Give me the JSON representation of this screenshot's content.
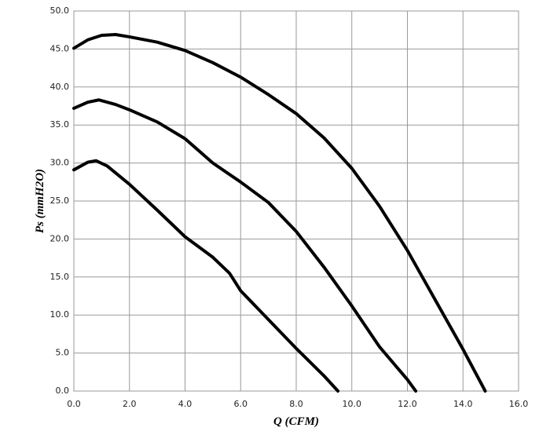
{
  "chart_data": {
    "type": "line",
    "x_label": "Q (CFM)",
    "y_label": "Ps (mmH2O)",
    "xlim": [
      0,
      16
    ],
    "ylim": [
      0,
      50
    ],
    "xticks": [
      {
        "value": 0,
        "label": "0.0"
      },
      {
        "value": 2,
        "label": "2.0"
      },
      {
        "value": 4,
        "label": "4.0"
      },
      {
        "value": 6,
        "label": "6.0"
      },
      {
        "value": 8,
        "label": "8.0"
      },
      {
        "value": 10,
        "label": "10.0"
      },
      {
        "value": 12,
        "label": "12.0"
      },
      {
        "value": 14,
        "label": "14.0"
      },
      {
        "value": 16,
        "label": "16.0"
      }
    ],
    "yticks": [
      {
        "value": 0,
        "label": "0.0"
      },
      {
        "value": 5,
        "label": "5.0"
      },
      {
        "value": 10,
        "label": "10.0"
      },
      {
        "value": 15,
        "label": "15.0"
      },
      {
        "value": 20,
        "label": "20.0"
      },
      {
        "value": 25,
        "label": "25.0"
      },
      {
        "value": 30,
        "label": "30.0"
      },
      {
        "value": 35,
        "label": "35.0"
      },
      {
        "value": 40,
        "label": "40.0"
      },
      {
        "value": 45,
        "label": "45.0"
      },
      {
        "value": 50,
        "label": "50.0"
      }
    ],
    "grid": true,
    "series": [
      {
        "color": "#000000",
        "x": [
          0,
          0.5,
          1,
          1.5,
          2,
          3,
          4,
          5,
          6,
          7,
          8,
          9,
          10,
          11,
          12,
          13,
          14,
          14.8
        ],
        "values": [
          45.1,
          46.2,
          46.8,
          46.9,
          46.6,
          45.9,
          44.8,
          43.2,
          41.3,
          39,
          36.5,
          33.3,
          29.3,
          24.3,
          18.5,
          12,
          5.5,
          0
        ]
      },
      {
        "color": "#000000",
        "x": [
          0,
          0.5,
          0.9,
          1.5,
          2,
          3,
          4,
          5,
          6,
          7,
          8,
          9,
          10,
          11,
          12,
          12.3
        ],
        "values": [
          37.2,
          38,
          38.3,
          37.7,
          37,
          35.4,
          33.2,
          30,
          27.5,
          24.8,
          21,
          16.3,
          11.2,
          5.8,
          1.5,
          0
        ]
      },
      {
        "color": "#000000",
        "x": [
          0,
          0.5,
          0.8,
          1.2,
          2,
          3,
          4,
          5,
          5.6,
          6,
          7,
          8,
          9,
          9.5
        ],
        "values": [
          29.1,
          30.1,
          30.3,
          29.6,
          27.2,
          23.8,
          20.3,
          17.6,
          15.5,
          13.2,
          9.4,
          5.6,
          2,
          0
        ]
      }
    ]
  }
}
